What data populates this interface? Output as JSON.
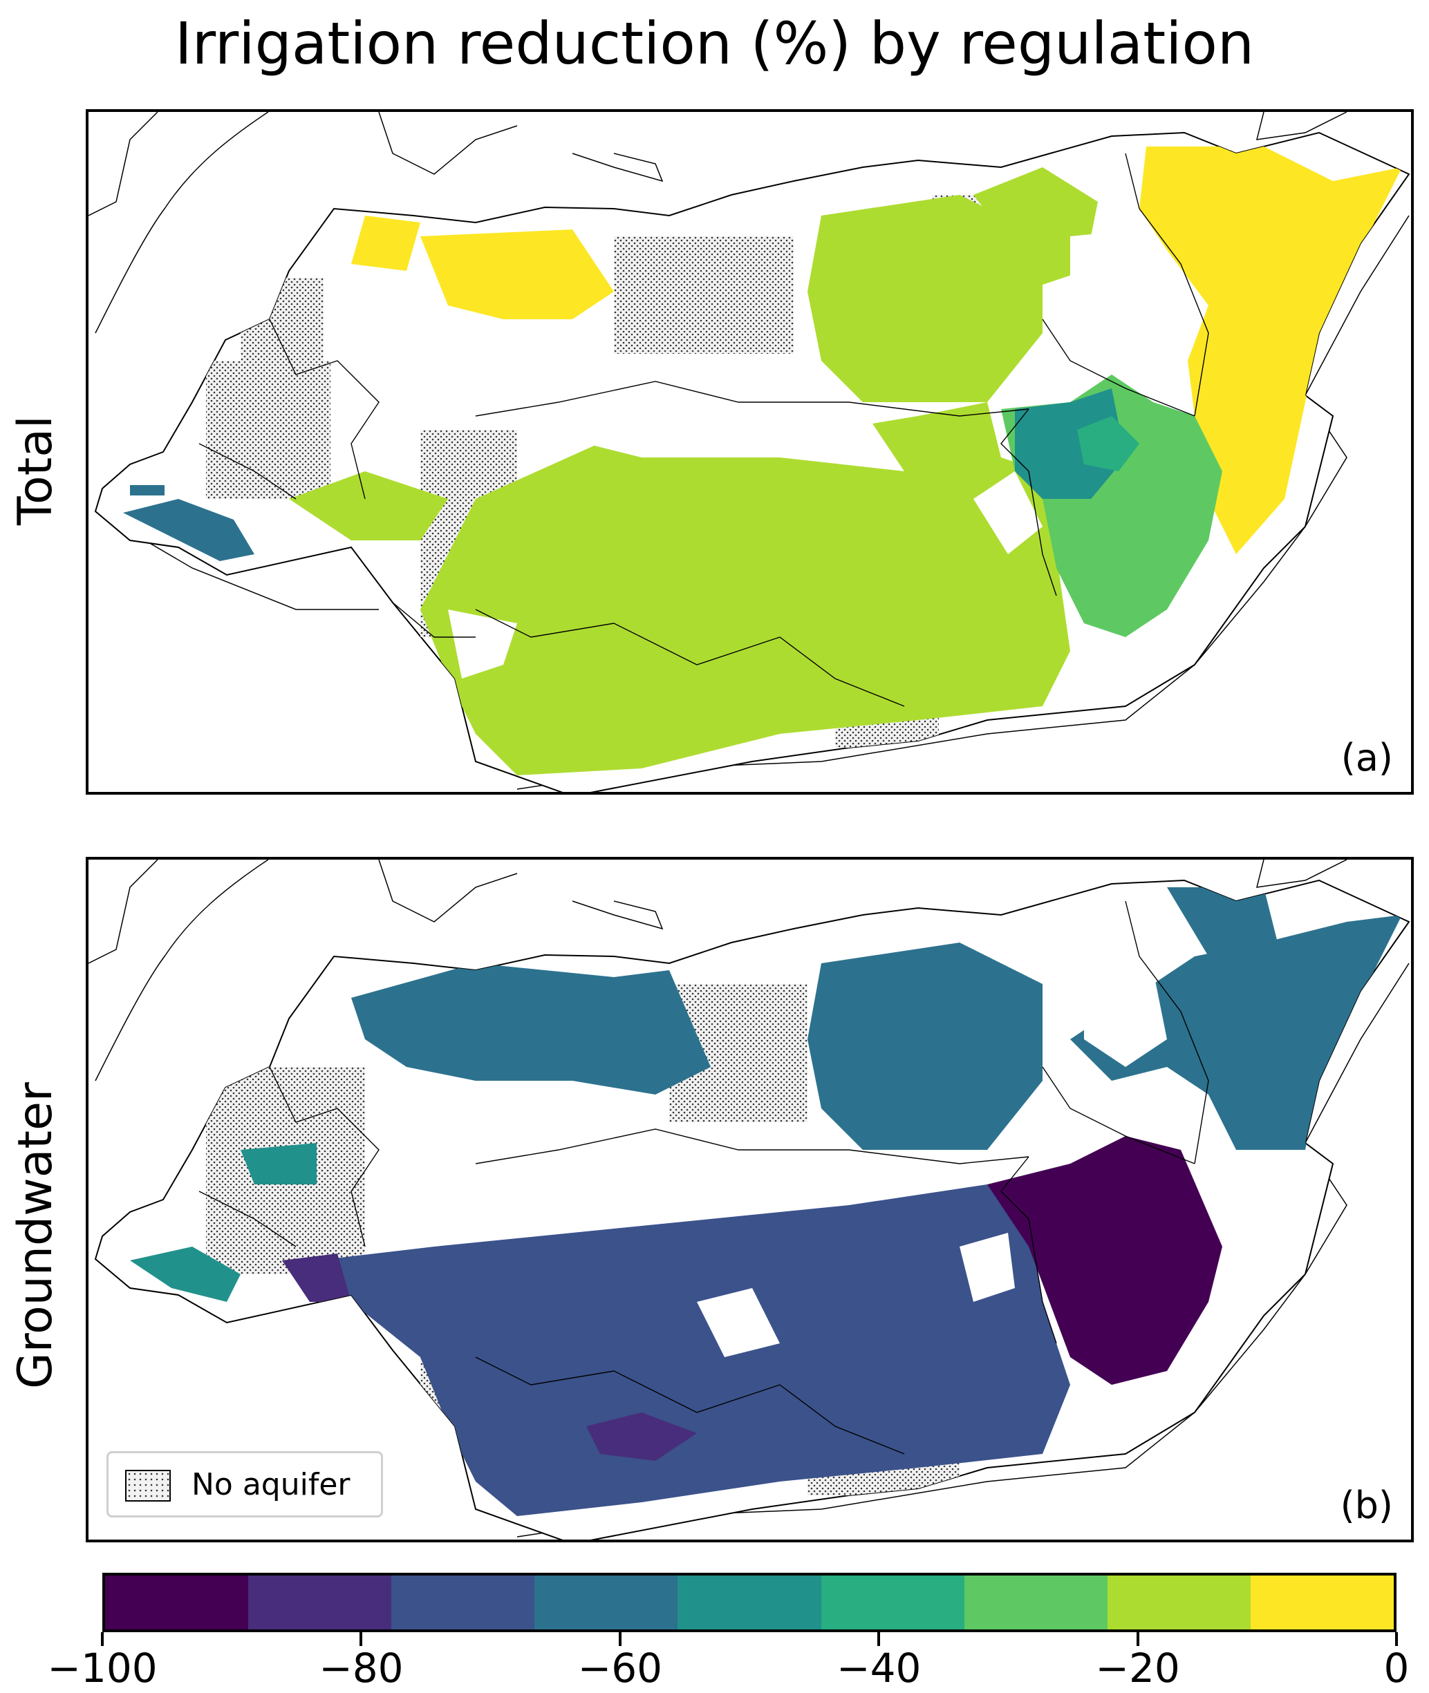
{
  "title": "Irrigation reduction (%) by regulation",
  "panels": [
    {
      "row_label": "Total",
      "tag": "(a)"
    },
    {
      "row_label": "Groundwater",
      "tag": "(b)"
    }
  ],
  "legend": {
    "label": "No aquifer"
  },
  "colorbar": {
    "ticks": [
      "−100",
      "−80",
      "−60",
      "−40",
      "−20",
      "0"
    ],
    "tick_values": [
      -100,
      -80,
      -60,
      -40,
      -20,
      0
    ],
    "range": [
      -100,
      0
    ],
    "bin_size": 10,
    "colors": [
      "#440154",
      "#472d7b",
      "#3b528b",
      "#2c728e",
      "#21918c",
      "#28ae80",
      "#5ec962",
      "#addc30",
      "#fde725"
    ]
  },
  "colors": {
    "total_dominant_east": "#fde725",
    "total_dominant_central": "#addc30",
    "total_southeast_basin": "#21918c",
    "gw_north": "#2c728e",
    "gw_central_south": "#3b528b",
    "gw_southeast_basin": "#440154",
    "no_aquifer_fill": "#d9d9d9"
  }
}
